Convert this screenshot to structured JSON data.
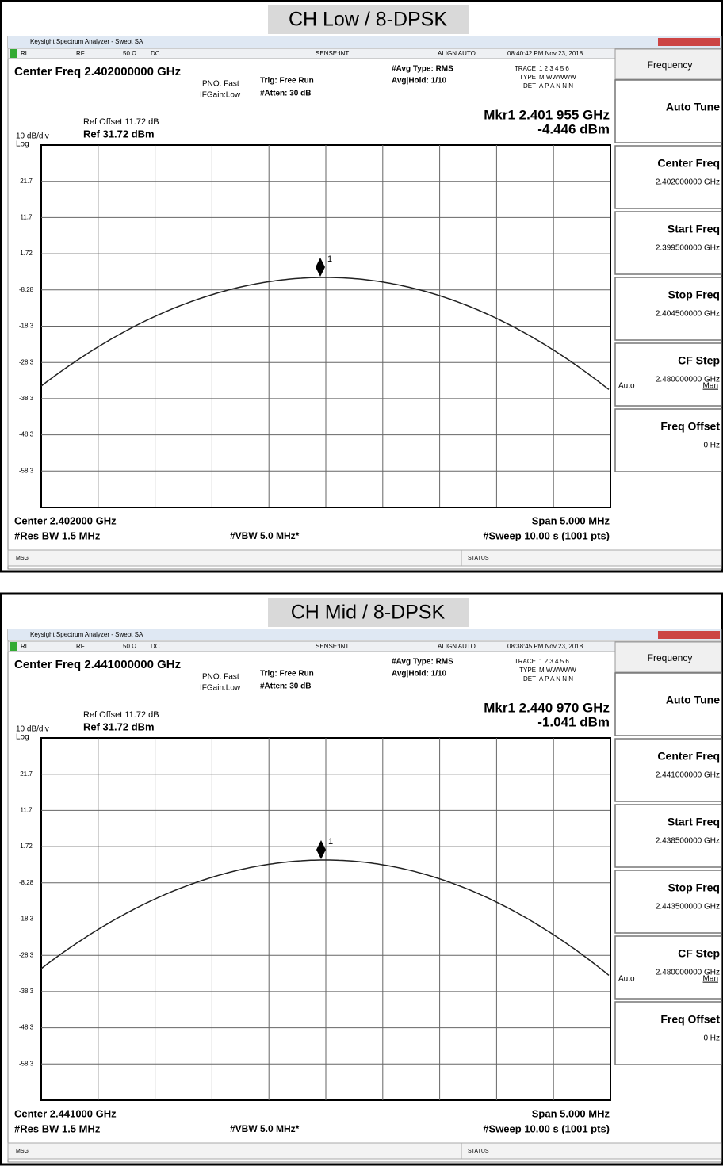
{
  "panels": [
    {
      "title": "CH Low / 8-DPSK",
      "window_title": "Keysight Spectrum Analyzer - Swept SA",
      "status_bar": [
        "RL",
        "RF",
        "50 Ω",
        "DC",
        "SENSE:INT",
        "ALIGN AUTO",
        "08:40:42 PM Nov 23, 2018"
      ],
      "center_freq": "Center Freq 2.402000000 GHz",
      "settings": [
        "PNO: Fast",
        "IFGain:Low",
        "Trig: Free Run",
        "#Atten: 30 dB",
        "#Avg Type: RMS",
        "Avg|Hold: 1/10"
      ],
      "trace_info": [
        "TRACE",
        "1 2 3 4 5 6",
        "TYPE",
        "M WWWWW",
        "DET",
        "A P A N N N"
      ],
      "marker": {
        "label": "1",
        "freq": "Mkr1 2.401 955 GHz",
        "level": "-4.446 dBm"
      },
      "ref_offset": "Ref Offset 11.72 dB",
      "ref_level": "Ref 31.72 dBm",
      "scale": "10 dB/div",
      "scale_type": "Log",
      "y_labels": [
        "21.7",
        "11.7",
        "1.72",
        "-8.28",
        "-18.3",
        "-28.3",
        "-38.3",
        "-48.3",
        "-58.3"
      ],
      "footer": {
        "center": "Center 2.402000 GHz",
        "res_bw": "#Res BW 1.5 MHz",
        "vbw": "#VBW 5.0 MHz*",
        "span": "Span 5.000 MHz",
        "sweep": "#Sweep  10.00 s (1001 pts)"
      },
      "msg": "MSG",
      "status": "STATUS",
      "softkeys": {
        "header": "Frequency",
        "keys": [
          {
            "label": "Auto Tune"
          },
          {
            "label": "Center Freq",
            "value": "2.402000000 GHz"
          },
          {
            "label": "Start Freq",
            "value": "2.399500000 GHz"
          },
          {
            "label": "Stop Freq",
            "value": "2.404500000 GHz"
          },
          {
            "label": "CF Step",
            "value": "2.480000000 GHz",
            "options": [
              "Auto",
              "Man"
            ]
          },
          {
            "label": "Freq Offset",
            "value": "0 Hz"
          }
        ]
      }
    },
    {
      "title": "CH Mid / 8-DPSK",
      "window_title": "Keysight Spectrum Analyzer - Swept SA",
      "status_bar": [
        "RL",
        "RF",
        "50 Ω",
        "DC",
        "SENSE:INT",
        "ALIGN AUTO",
        "08:38:45 PM Nov 23, 2018"
      ],
      "center_freq": "Center Freq 2.441000000 GHz",
      "settings": [
        "PNO: Fast",
        "IFGain:Low",
        "Trig: Free Run",
        "#Atten: 30 dB",
        "#Avg Type: RMS",
        "Avg|Hold: 1/10"
      ],
      "trace_info": [
        "TRACE",
        "1 2 3 4 5 6",
        "TYPE",
        "M WWWWW",
        "DET",
        "A P A N N N"
      ],
      "marker": {
        "label": "1",
        "freq": "Mkr1 2.440 970 GHz",
        "level": "-1.041 dBm"
      },
      "ref_offset": "Ref Offset 11.72 dB",
      "ref_level": "Ref 31.72 dBm",
      "scale": "10 dB/div",
      "scale_type": "Log",
      "y_labels": [
        "21.7",
        "11.7",
        "1.72",
        "-8.28",
        "-18.3",
        "-28.3",
        "-38.3",
        "-48.3",
        "-58.3"
      ],
      "footer": {
        "center": "Center 2.441000 GHz",
        "res_bw": "#Res BW 1.5 MHz",
        "vbw": "#VBW 5.0 MHz*",
        "span": "Span 5.000 MHz",
        "sweep": "#Sweep  10.00 s (1001 pts)"
      },
      "msg": "MSG",
      "status": "STATUS",
      "softkeys": {
        "header": "Frequency",
        "keys": [
          {
            "label": "Auto Tune"
          },
          {
            "label": "Center Freq",
            "value": "2.441000000 GHz"
          },
          {
            "label": "Start Freq",
            "value": "2.438500000 GHz"
          },
          {
            "label": "Stop Freq",
            "value": "2.443500000 GHz"
          },
          {
            "label": "CF Step",
            "value": "2.480000000 GHz",
            "options": [
              "Auto",
              "Man"
            ]
          },
          {
            "label": "Freq Offset",
            "value": "0 Hz"
          }
        ]
      }
    }
  ]
}
